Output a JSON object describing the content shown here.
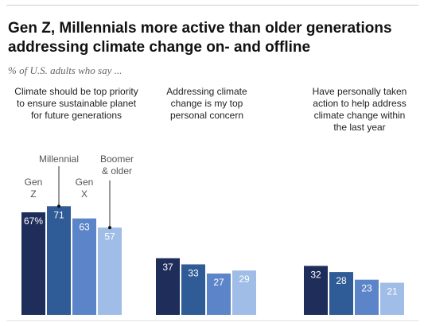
{
  "header": {
    "title": "Gen Z, Millennials more active than older generations addressing climate change on- and offline",
    "subtitle": "% of U.S. adults who say ..."
  },
  "chart_data": {
    "type": "bar",
    "series": [
      {
        "name": "Gen Z",
        "label_lines": [
          "Gen",
          "Z"
        ],
        "color": "#1f2d5a"
      },
      {
        "name": "Millennial",
        "label_lines": [
          "Millennial"
        ],
        "color": "#2f5b96"
      },
      {
        "name": "Gen X",
        "label_lines": [
          "Gen",
          "X"
        ],
        "color": "#5c84c8"
      },
      {
        "name": "Boomer & older",
        "label_lines": [
          "Boomer",
          "& older"
        ],
        "color": "#9fbde6"
      }
    ],
    "panels": [
      {
        "title": "Climate should be top priority to ensure sustainable planet for future generations",
        "values": [
          67,
          71,
          63,
          57
        ],
        "labels": [
          "67%",
          "71",
          "63",
          "57"
        ]
      },
      {
        "title": "Addressing climate change is my top personal concern",
        "values": [
          37,
          33,
          27,
          29
        ],
        "labels": [
          "37",
          "33",
          "27",
          "29"
        ]
      },
      {
        "title": "Have personally taken action to help address climate change within the last year",
        "values": [
          32,
          28,
          23,
          21
        ],
        "labels": [
          "32",
          "28",
          "23",
          "21"
        ]
      }
    ],
    "ylim": [
      0,
      100
    ],
    "legend_placement": "inline-above-first-panel",
    "grid": false
  }
}
